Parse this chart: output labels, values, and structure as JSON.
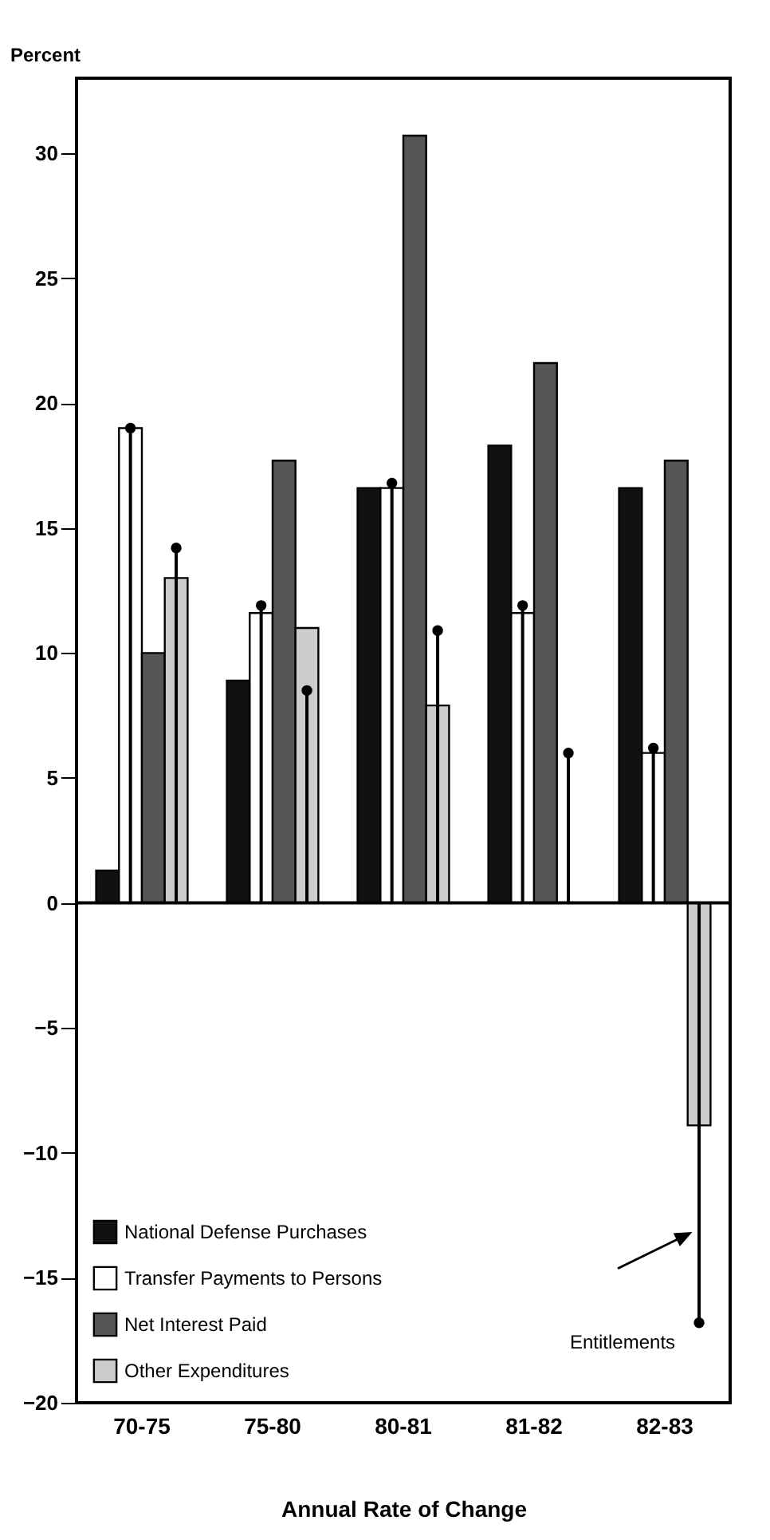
{
  "chart_data": {
    "type": "bar",
    "ylabel": "Percent",
    "xlabel": "Annual Rate of Change",
    "categories": [
      "70-75",
      "75-80",
      "80-81",
      "81-82",
      "82-83"
    ],
    "series": [
      {
        "name": "National Defense Purchases",
        "color": "#111111",
        "values": [
          1.3,
          8.9,
          16.6,
          18.3,
          16.6
        ]
      },
      {
        "name": "Transfer Payments to Persons",
        "color": "#ffffff",
        "values": [
          19.0,
          11.6,
          16.6,
          11.6,
          6.0
        ]
      },
      {
        "type": "lollipop",
        "color": "#000000",
        "values": [
          19.0,
          11.9,
          16.8,
          11.9,
          6.2
        ]
      },
      {
        "name": "Net Interest Paid",
        "color": "#555555",
        "values": [
          10.0,
          17.7,
          30.7,
          21.6,
          17.7
        ]
      },
      {
        "name": "Other Expenditures",
        "color": "#cccccc",
        "values": [
          13.0,
          11.0,
          7.9,
          0,
          -8.9
        ]
      },
      {
        "type": "lollipop",
        "color": "#000000",
        "values": [
          14.2,
          8.5,
          10.9,
          6.0,
          -16.8
        ]
      }
    ],
    "ylim": [
      -20,
      33
    ],
    "yticks": [
      -20,
      -15,
      -10,
      -5,
      0,
      5,
      10,
      15,
      20,
      25,
      30
    ],
    "annotations": [
      "Entitlements"
    ],
    "ref_lines": [
      {
        "axis": "y",
        "value": 0
      }
    ],
    "legend": "bottom left",
    "grid": false
  }
}
